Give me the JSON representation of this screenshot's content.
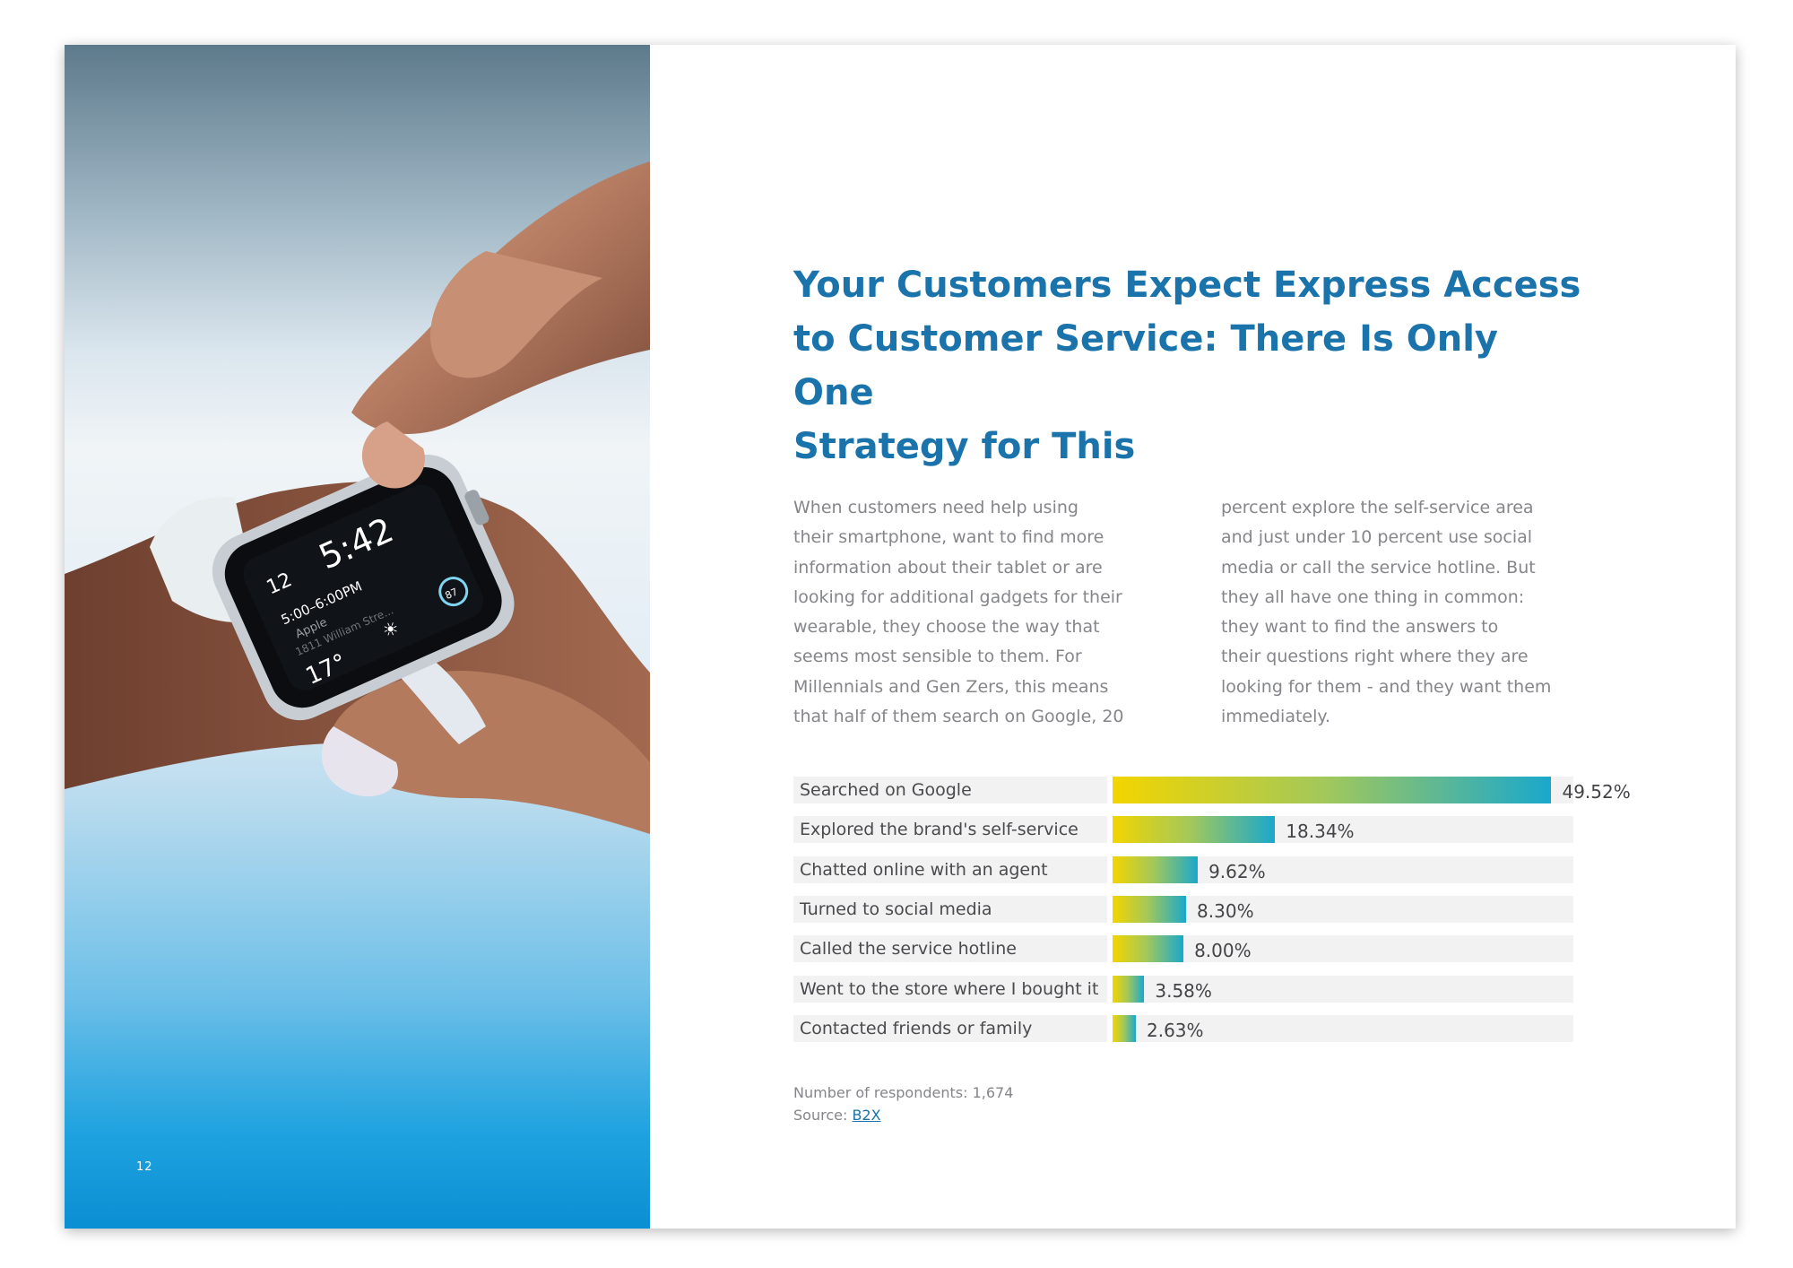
{
  "page": {
    "number": "12"
  },
  "heading": {
    "title_line1": "Your Customers Expect Express Access",
    "title_line2": "to Customer Service: There Is Only One",
    "title_line3": "Strategy for This"
  },
  "body": {
    "column1": [
      "When customers need help using",
      "their smartphone, want to find more",
      "information about their tablet or are",
      "looking for additional gadgets for their",
      "wearable, they choose the way that",
      "seems most sensible to them. For",
      "Millennials and Gen Zers, this means",
      "that half of them search on Google, 20"
    ],
    "column2": [
      "percent explore the self-service area",
      "and just under 10 percent use social",
      "media or call the service hotline. But",
      "they all have one thing in common:",
      "they want to find the answers to",
      "their questions right where they are",
      "looking for them - and they want them",
      "immediately."
    ]
  },
  "watch_screen": {
    "time": "5:42",
    "date": "12",
    "event_time": "5:00–6:00PM",
    "event_name": "Apple",
    "event_place": "1811 William Stre...",
    "temperature": "17°",
    "ring_value": "87"
  },
  "chart_data": {
    "type": "bar",
    "orientation": "horizontal",
    "categories": [
      "Searched on Google",
      "Explored the brand's self-service",
      "Chatted online with an agent",
      "Turned to social media",
      "Called the service hotline",
      "Went to the store where I bought it",
      "Contacted friends or family"
    ],
    "values": [
      49.52,
      18.34,
      9.62,
      8.3,
      8.0,
      3.58,
      2.63
    ],
    "value_labels": [
      "49.52%",
      "18.34%",
      "9.62%",
      "8.30%",
      "8.00%",
      "3.58%",
      "2.63%"
    ],
    "unit": "%",
    "xlim": [
      0,
      52
    ],
    "colors": {
      "gradient_start": "#f3d500",
      "gradient_mid": "#a3c85a",
      "gradient_end": "#1aa8cc",
      "track": "#f2f2f2"
    }
  },
  "footnotes": {
    "respondents": "Number of respondents: 1,674",
    "source_label": "Source: ",
    "source_link": "B2X"
  },
  "colors": {
    "heading": "#1b73ab",
    "body_text": "#85868a"
  }
}
